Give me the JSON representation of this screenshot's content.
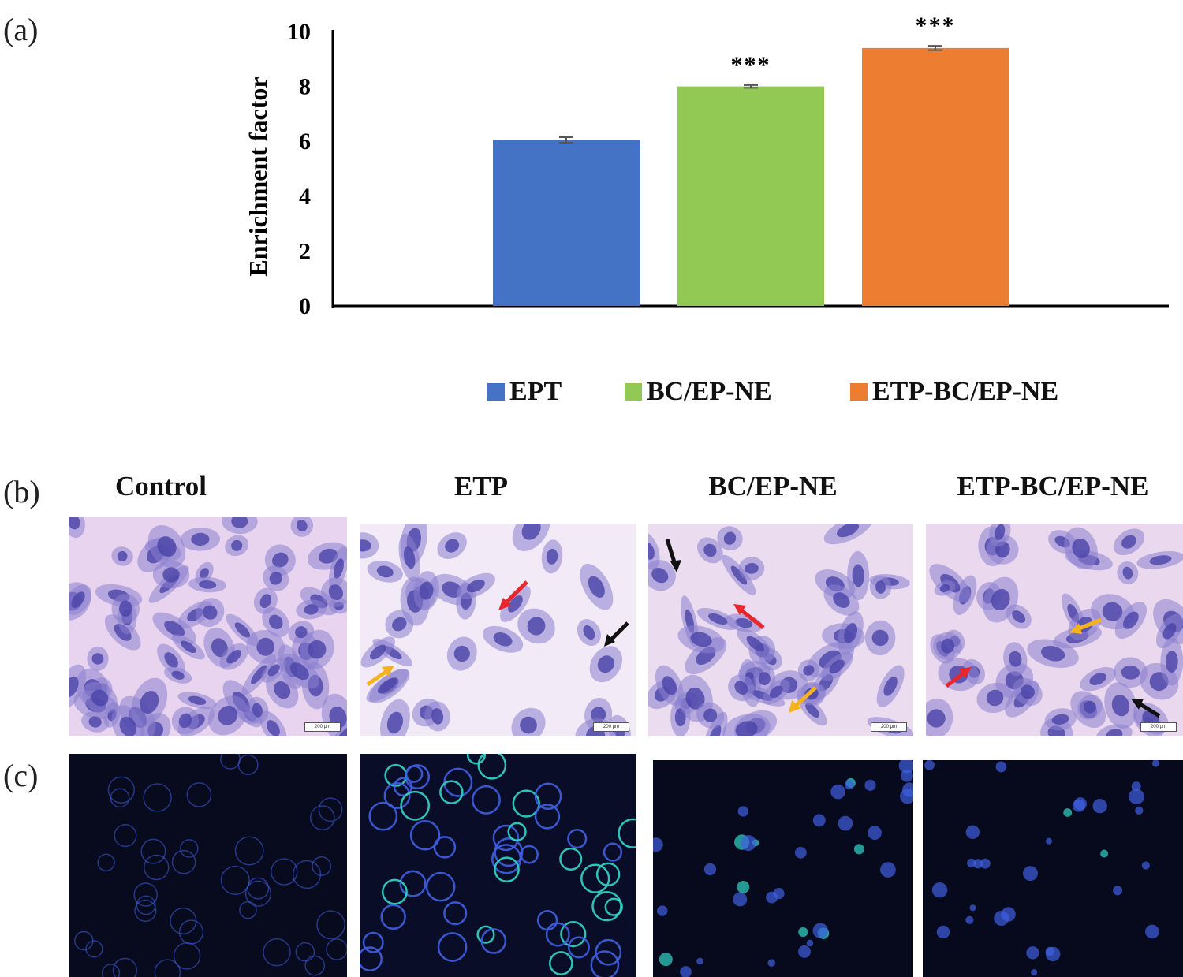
{
  "panels": {
    "a_label": "(a)",
    "b_label": "(b)",
    "c_label": "(c)"
  },
  "chart_data": {
    "type": "bar",
    "categories": [
      "EPT",
      "BC/EP-NE",
      "ETP-BC/EP-NE"
    ],
    "series": [
      {
        "name": "EPT",
        "value": 6.05,
        "error": 0.1,
        "color": "#4472C4",
        "significance": ""
      },
      {
        "name": "BC/EP-NE",
        "value": 8.0,
        "error": 0.05,
        "color": "#92C954",
        "significance": "***"
      },
      {
        "name": "ETP-BC/EP-NE",
        "value": 9.4,
        "error": 0.08,
        "color": "#ED7D31",
        "significance": "***"
      }
    ],
    "ylabel": "Enrichment factor",
    "ylim": [
      0,
      10
    ],
    "yticks": [
      "0",
      "2",
      "4",
      "6",
      "8",
      "10"
    ],
    "legend_position": "bottom",
    "grid": false
  },
  "figure_b": {
    "columns": [
      "Control",
      "ETP",
      "BC/EP-NE",
      "ETP-BC/EP-NE"
    ],
    "scale_labels": [
      "200 μm",
      "200 μm",
      "200 μm",
      "200 μm"
    ],
    "arrow_colors": {
      "red": "#E8262B",
      "yellow": "#F5B21B",
      "black": "#111111"
    }
  },
  "figure_c": {
    "background": "#080a1e",
    "stain_color": "#3f5fe0",
    "highlight_color": "#33d6c8"
  }
}
